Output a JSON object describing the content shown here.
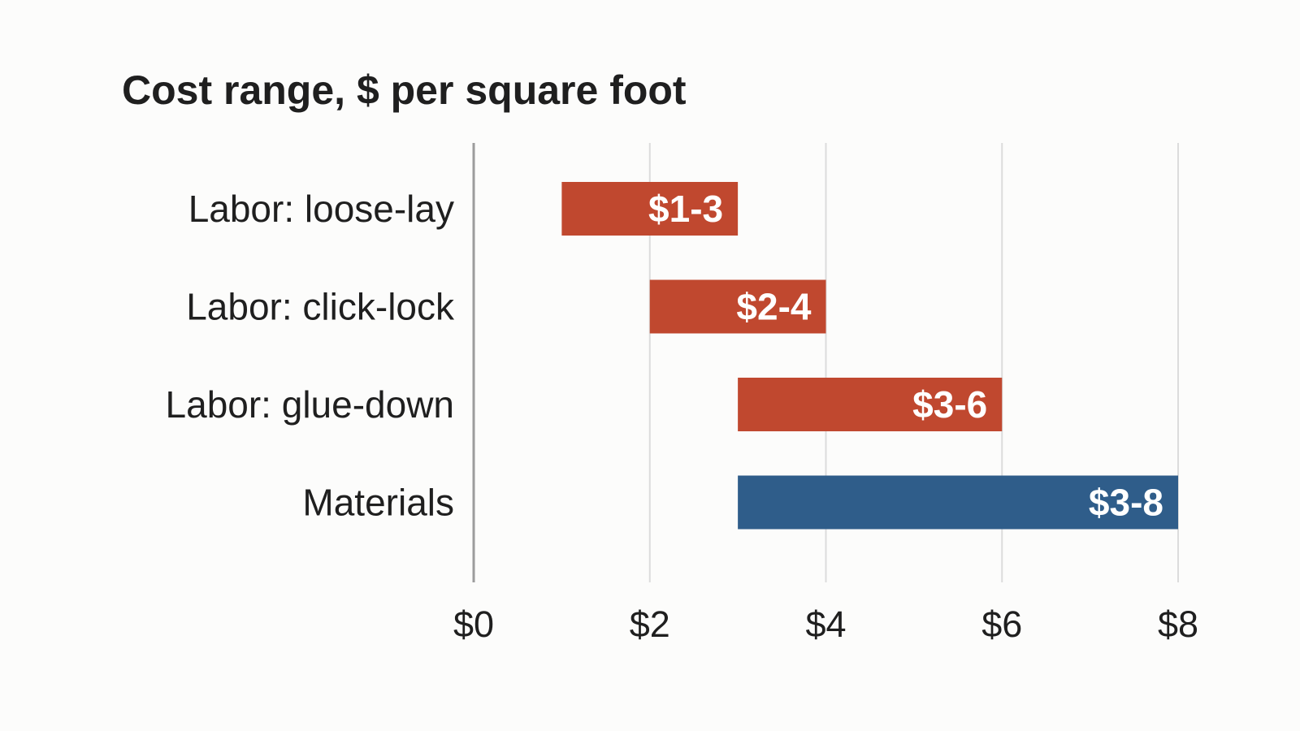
{
  "chart_data": {
    "type": "bar",
    "orientation": "horizontal",
    "title": "Cost range, $ per square foot",
    "categories": [
      "Labor: loose-lay",
      "Labor: click-lock",
      "Labor: glue-down",
      "Materials"
    ],
    "ranges": [
      {
        "category": "Labor: loose-lay",
        "low": 1,
        "high": 3,
        "label": "$1-3",
        "color": "#c0482f"
      },
      {
        "category": "Labor: click-lock",
        "low": 2,
        "high": 4,
        "label": "$2-4",
        "color": "#c0482f"
      },
      {
        "category": "Labor: glue-down",
        "low": 3,
        "high": 6,
        "label": "$3-6",
        "color": "#c0482f"
      },
      {
        "category": "Materials",
        "low": 3,
        "high": 8,
        "label": "$3-8",
        "color": "#2f5d8a"
      }
    ],
    "xlim": [
      0,
      8
    ],
    "xticks": [
      0,
      2,
      4,
      6,
      8
    ],
    "xtick_labels": [
      "$0",
      "$2",
      "$4",
      "$6",
      "$8"
    ],
    "grid": "vertical",
    "legend": "none"
  }
}
